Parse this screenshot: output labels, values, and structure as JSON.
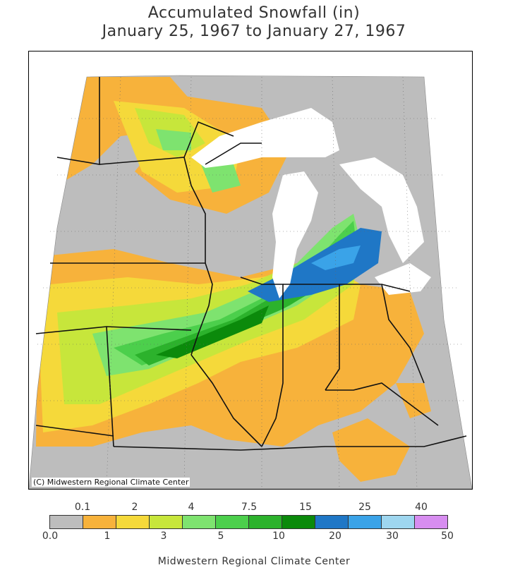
{
  "title_line1": "Accumulated Snowfall (in)",
  "title_line2": "January 25, 1967 to January 27, 1967",
  "credit": "(C) Midwestern Regional Climate Center",
  "footer": "Midwestern Regional Climate Center",
  "legend": {
    "upper_labels": [
      "0.1",
      "2",
      "4",
      "7.5",
      "15",
      "25",
      "40"
    ],
    "lower_labels": [
      "0.0",
      "1",
      "3",
      "5",
      "10",
      "20",
      "30",
      "50"
    ],
    "colors": [
      "#bdbdbd",
      "#f7b23b",
      "#f5d93a",
      "#c7e63b",
      "#7ee36f",
      "#4ccf4c",
      "#2cb22c",
      "#0b8a0b",
      "#1f77c6",
      "#3aa3e8",
      "#9ed6ef",
      "#d78df0"
    ]
  }
}
